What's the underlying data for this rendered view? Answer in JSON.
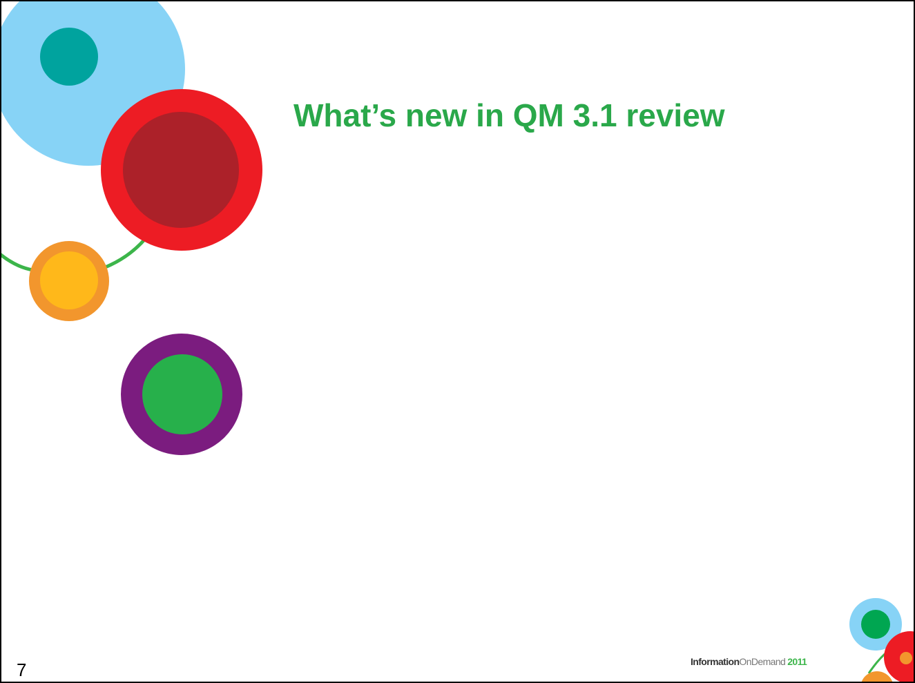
{
  "slide": {
    "title": "What’s new in QM 3.1 review",
    "page_number": "7",
    "logo": {
      "part1": "Information",
      "part2": "OnDemand",
      "year": "2011"
    }
  }
}
